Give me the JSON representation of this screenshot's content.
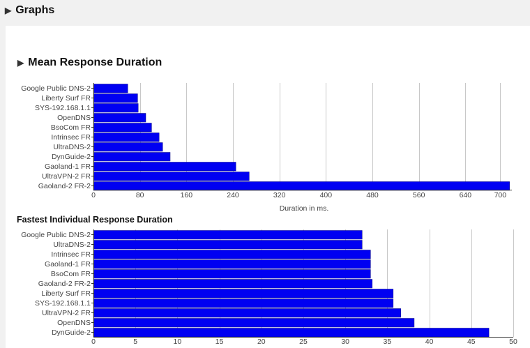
{
  "section_title": "Graphs",
  "chart1_heading": "Mean Response Duration",
  "chart2_title": "Fastest Individual Response Duration",
  "colors": {
    "bar": "#0000f2",
    "grid": "#c8c8c8",
    "axis": "#333333"
  },
  "icons": {
    "section": "triangle-right-icon",
    "chart1": "triangle-right-icon"
  },
  "chart_data": [
    {
      "type": "bar",
      "orientation": "horizontal",
      "title": "Mean Response Duration",
      "xlabel": "Duration in ms.",
      "categories": [
        "Google Public DNS-2",
        "Liberty Surf FR",
        "SYS-192.168.1.1",
        "OpenDNS",
        "BsoCom FR",
        "Intrinsec FR",
        "UltraDNS-2",
        "DynGuide-2",
        "Gaoland-1 FR",
        "UltraVPN-2 FR",
        "Gaoland-2 FR-2"
      ],
      "values": [
        59,
        76,
        77,
        90,
        100,
        113,
        119,
        132,
        245,
        268,
        716
      ],
      "xlim": [
        0,
        720
      ],
      "ticks": [
        0,
        80,
        160,
        240,
        320,
        400,
        480,
        560,
        640,
        700
      ],
      "grid": true
    },
    {
      "type": "bar",
      "orientation": "horizontal",
      "title": "Fastest Individual Response Duration",
      "xlabel": "",
      "categories": [
        "Google Public DNS-2",
        "UltraDNS-2",
        "Intrinsec FR",
        "Gaoland-1 FR",
        "BsoCom FR",
        "Gaoland-2 FR-2",
        "Liberty Surf FR",
        "SYS-192.168.1.1",
        "UltraVPN-2 FR",
        "OpenDNS",
        "DynGuide-2"
      ],
      "values": [
        32,
        32,
        33,
        33,
        33,
        33.2,
        35.7,
        35.7,
        36.6,
        38.2,
        47.1
      ],
      "xlim": [
        0,
        50
      ],
      "ticks": [
        0,
        5,
        10,
        15,
        20,
        25,
        30,
        35,
        40,
        45,
        50
      ],
      "grid": true
    }
  ]
}
